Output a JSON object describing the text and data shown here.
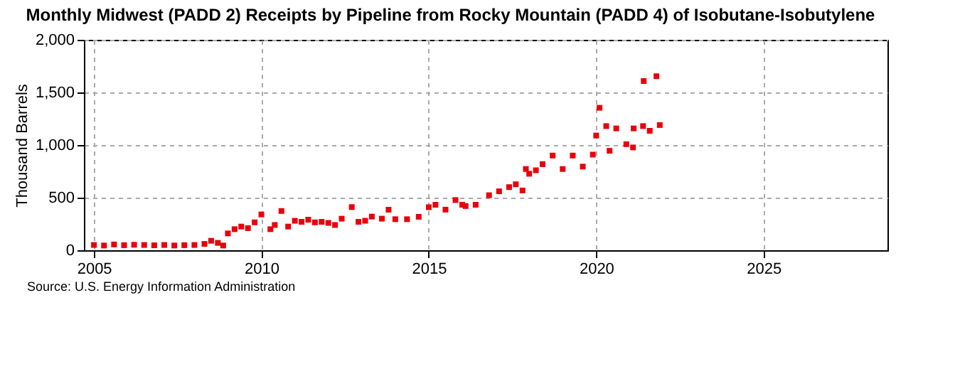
{
  "chart_data": {
    "type": "scatter",
    "title": "Monthly Midwest (PADD 2) Receipts by Pipeline from Rocky Mountain (PADD 4) of Isobutane-Isobutylene",
    "ylabel": "Thousand Barrels",
    "annotations": [
      "Source: U.S. Energy Information Administration"
    ],
    "x": [
      2005.0,
      2005.3,
      2005.6,
      2005.9,
      2006.2,
      2006.5,
      2006.8,
      2007.1,
      2007.4,
      2007.7,
      2008.0,
      2008.3,
      2008.5,
      2008.7,
      2008.86,
      2009.0,
      2009.2,
      2009.4,
      2009.6,
      2009.8,
      2010.0,
      2010.27,
      2010.4,
      2010.6,
      2010.8,
      2011.0,
      2011.2,
      2011.4,
      2011.6,
      2011.8,
      2012.0,
      2012.2,
      2012.4,
      2012.7,
      2012.9,
      2013.1,
      2013.3,
      2013.6,
      2013.8,
      2014.0,
      2014.35,
      2014.7,
      2015.0,
      2015.2,
      2015.5,
      2015.8,
      2016.0,
      2016.1,
      2016.4,
      2016.8,
      2017.1,
      2017.4,
      2017.6,
      2017.8,
      2017.9,
      2018.0,
      2018.2,
      2018.4,
      2018.7,
      2019.0,
      2019.3,
      2019.6,
      2019.9,
      2020.0,
      2020.1,
      2020.3,
      2020.4,
      2020.6,
      2020.9,
      2021.1,
      2021.12,
      2021.4,
      2021.42,
      2021.6,
      2021.8,
      2021.9
    ],
    "values": [
      50,
      45,
      55,
      48,
      52,
      50,
      47,
      50,
      45,
      48,
      50,
      60,
      90,
      70,
      45,
      160,
      200,
      225,
      210,
      265,
      340,
      200,
      240,
      373,
      225,
      280,
      270,
      290,
      265,
      270,
      260,
      240,
      300,
      410,
      270,
      280,
      320,
      300,
      385,
      295,
      295,
      318,
      409,
      432,
      386,
      477,
      432,
      420,
      432,
      523,
      560,
      600,
      627,
      568,
      772,
      727,
      760,
      818,
      900,
      772,
      900,
      795,
      909,
      1090,
      1354,
      1180,
      945,
      1158,
      1008,
      977,
      1158,
      1180,
      1608,
      1135,
      1654,
      1190
    ],
    "color": "#e8000b",
    "marker": "square",
    "xlim": [
      2004.7,
      2028.7
    ],
    "xticks": [
      2005,
      2010,
      2015,
      2020,
      2025
    ],
    "ylim": [
      0,
      2000
    ],
    "yticks": [
      {
        "value": 0,
        "label": "0"
      },
      {
        "value": 500,
        "label": "500"
      },
      {
        "value": 1000,
        "label": "1,000"
      },
      {
        "value": 1500,
        "label": "1,500"
      },
      {
        "value": 2000,
        "label": "2,000"
      }
    ],
    "grid": true
  }
}
